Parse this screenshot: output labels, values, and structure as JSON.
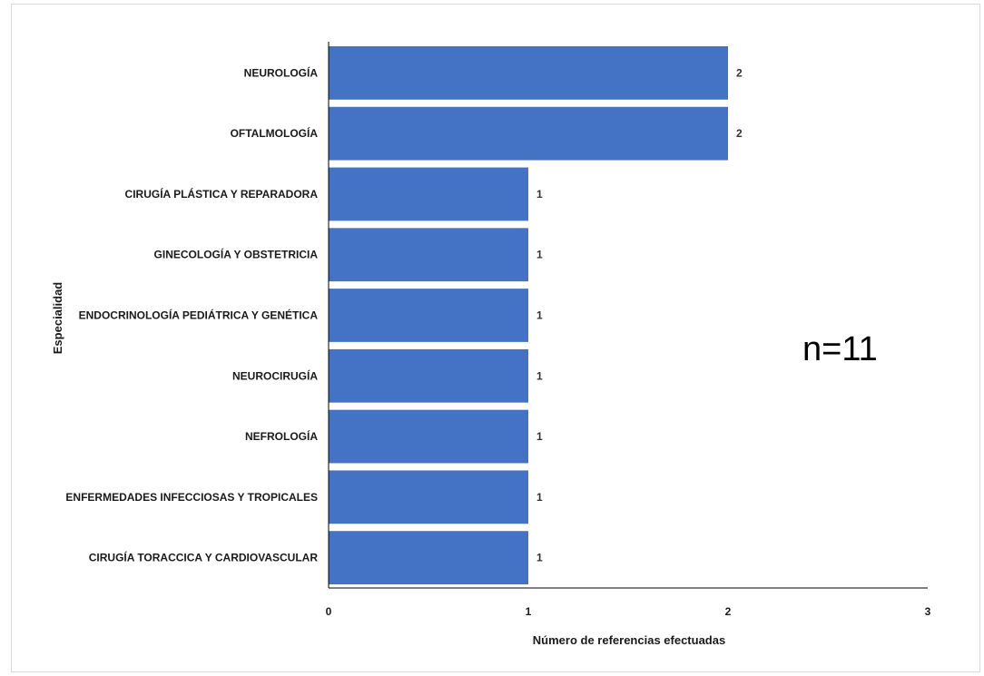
{
  "chart_data": {
    "type": "bar",
    "orientation": "horizontal",
    "categories": [
      "NEUROLOGÍA",
      "OFTALMOLOGÍA",
      "CIRUGÍA PLÁSTICA Y REPARADORA",
      "GINECOLOGÍA Y OBSTETRICIA",
      "ENDOCRINOLOGÍA PEDIÁTRICA Y  GENÉTICA",
      "NEUROCIRUGÍA",
      "NEFROLOGÍA",
      "ENFERMEDADES INFECCIOSAS Y  TROPICALES",
      "CIRUGÍA TORACCICA Y CARDIOVASCULAR"
    ],
    "values": [
      2,
      2,
      1,
      1,
      1,
      1,
      1,
      1,
      1
    ],
    "title": "",
    "xlabel": "Número de referencias efectuadas",
    "ylabel": "Especialidad",
    "xlim": [
      0,
      3
    ],
    "xticks": [
      0,
      1,
      2,
      3
    ],
    "grid": false,
    "legend": "none",
    "annotation": "n=11",
    "bar_color": "#4472c4"
  }
}
